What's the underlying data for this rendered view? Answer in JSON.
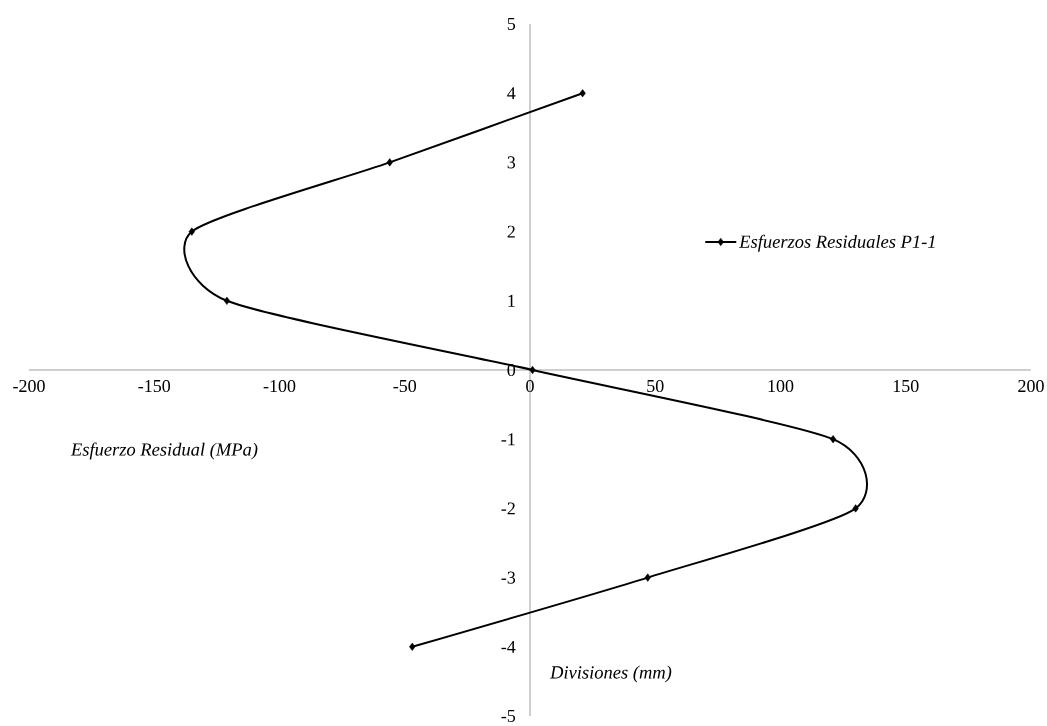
{
  "chart_data": {
    "type": "line",
    "xlabel": "Esfuerzo Residual (MPa)",
    "ylabel": "Divisiones (mm)",
    "x": [
      21,
      -56,
      -135,
      -121,
      1,
      121,
      130,
      47,
      -47
    ],
    "series": [
      {
        "name": "Esfuerzos Residuales P1-1",
        "color": "#000000",
        "values": [
          4,
          3,
          2,
          1,
          0,
          -1,
          -2,
          -3,
          -4
        ]
      }
    ],
    "xlim": [
      -200,
      200
    ],
    "xticks": [
      -200,
      -150,
      -100,
      -50,
      0,
      50,
      100,
      150,
      200
    ],
    "ylim": [
      -5,
      5
    ],
    "yticks": [
      -5,
      -4,
      -3,
      -2,
      -1,
      0,
      1,
      2,
      3,
      4,
      5
    ],
    "legend": "right",
    "marker": "diamond",
    "line_style": "solid"
  }
}
